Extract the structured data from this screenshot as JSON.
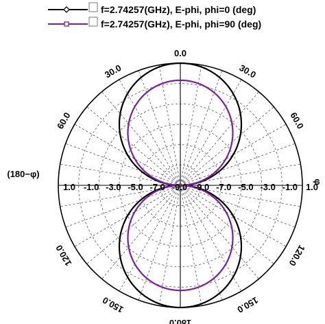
{
  "chart_data": {
    "type": "polar",
    "angular_tick_labels": [
      "0.0",
      "30.0",
      "60.0",
      "φ",
      "120.0",
      "150.0",
      "180.0",
      "150.0",
      "120.0",
      "(180−φ)",
      "60.0",
      "30.0"
    ],
    "radial_tick_labels": [
      "1.0",
      "-1.0",
      "-3.0",
      "-5.0",
      "-7.0",
      "-9.0",
      "-9.0",
      "-7.0",
      "-5.0",
      "-3.0",
      "-1.0",
      "1.0"
    ],
    "radial_range_db": [
      -10,
      1
    ],
    "grid": true,
    "legend_position": "top-left",
    "series": [
      {
        "name": "f=2.74257(GHz), E-phi, phi=0 (deg)",
        "color": "#000000",
        "marker": "diamond",
        "angles_deg": [
          0,
          15,
          30,
          45,
          60,
          75,
          90,
          105,
          120,
          135,
          150,
          165,
          180,
          195,
          210,
          225,
          240,
          255,
          270,
          285,
          300,
          315,
          330,
          345
        ],
        "magnitude_normalized": [
          1.0,
          0.966,
          0.866,
          0.707,
          0.5,
          0.259,
          0.0,
          0.259,
          0.5,
          0.707,
          0.866,
          0.966,
          1.0,
          0.966,
          0.866,
          0.707,
          0.5,
          0.259,
          0.0,
          0.259,
          0.5,
          0.707,
          0.866,
          0.966
        ]
      },
      {
        "name": "f=2.74257(GHz), E-phi, phi=90 (deg)",
        "color": "#7a1fa2",
        "marker": "square",
        "angles_deg": [
          0,
          15,
          30,
          45,
          60,
          75,
          90,
          105,
          120,
          135,
          150,
          165,
          180,
          195,
          210,
          225,
          240,
          255,
          270,
          285,
          300,
          315,
          330,
          345
        ],
        "magnitude_normalized": [
          0.86,
          0.83,
          0.745,
          0.608,
          0.43,
          0.223,
          0.0,
          0.223,
          0.43,
          0.608,
          0.745,
          0.83,
          0.86,
          0.83,
          0.745,
          0.608,
          0.43,
          0.223,
          0.0,
          0.223,
          0.43,
          0.608,
          0.745,
          0.83
        ]
      }
    ]
  }
}
